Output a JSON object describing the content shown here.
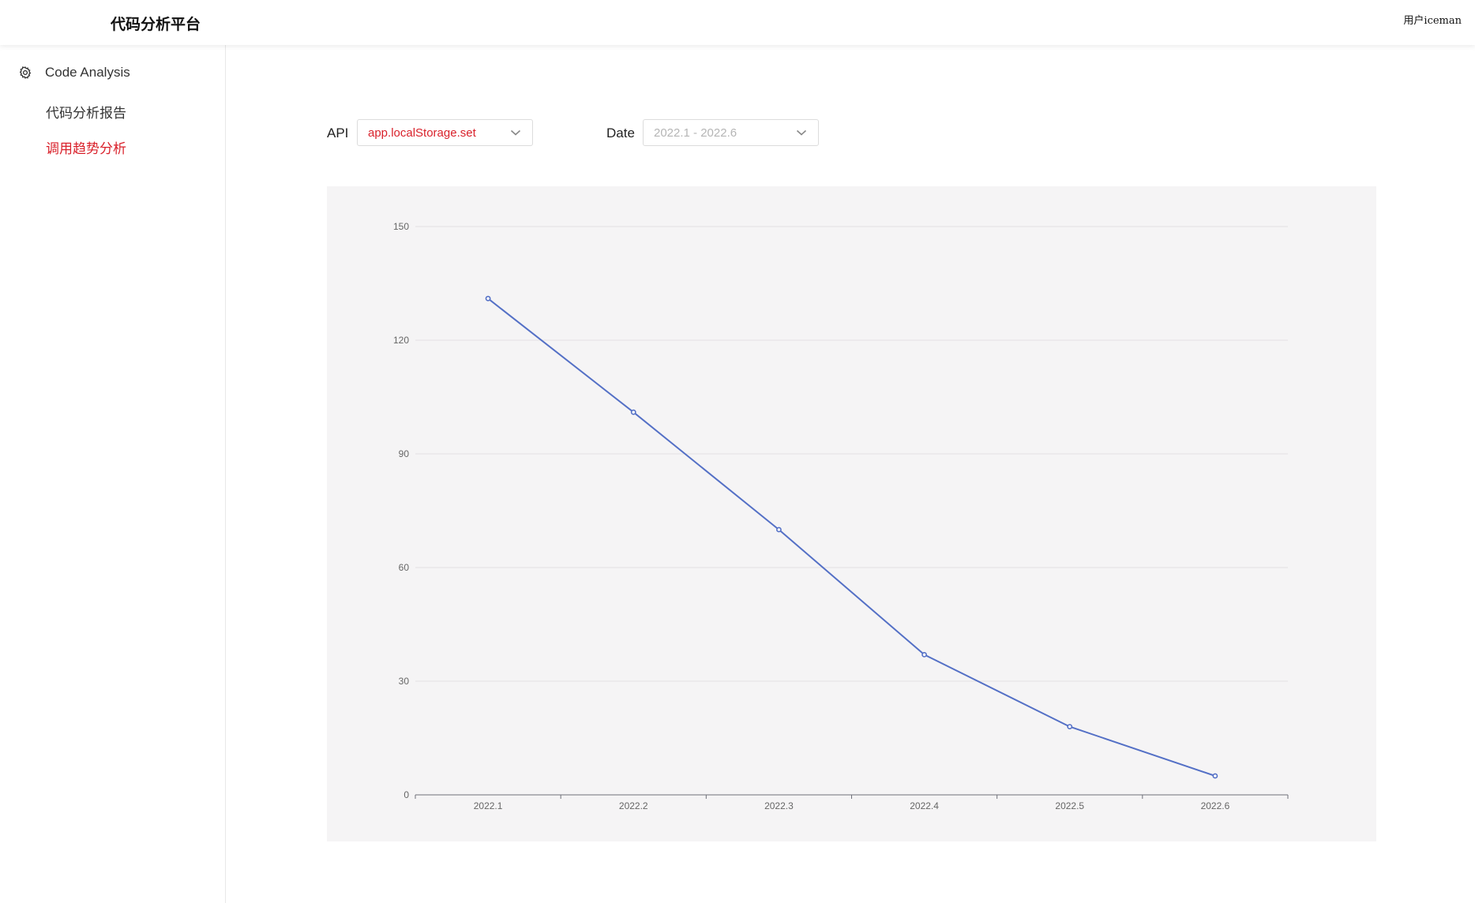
{
  "header": {
    "title": "代码分析平台",
    "user": "用户iceman"
  },
  "sidebar": {
    "group": {
      "label": "Code Analysis",
      "icon": "gear-icon"
    },
    "items": [
      {
        "label": "代码分析报告",
        "active": false
      },
      {
        "label": "调用趋势分析",
        "active": true
      }
    ]
  },
  "filters": {
    "api": {
      "label": "API",
      "value": "app.localStorage.set"
    },
    "date": {
      "label": "Date",
      "placeholder": "2022.1 - 2022.6"
    }
  },
  "colors": {
    "accent": "#d9212b",
    "line": "#5470c6",
    "chart_bg": "#f5f4f5"
  },
  "chart_data": {
    "type": "line",
    "categories": [
      "2022.1",
      "2022.2",
      "2022.3",
      "2022.4",
      "2022.5",
      "2022.6"
    ],
    "values": [
      131,
      101,
      70,
      37,
      18,
      5
    ],
    "ylim": [
      0,
      150
    ],
    "yticks": [
      0,
      30,
      60,
      90,
      120,
      150
    ],
    "grid": true
  }
}
